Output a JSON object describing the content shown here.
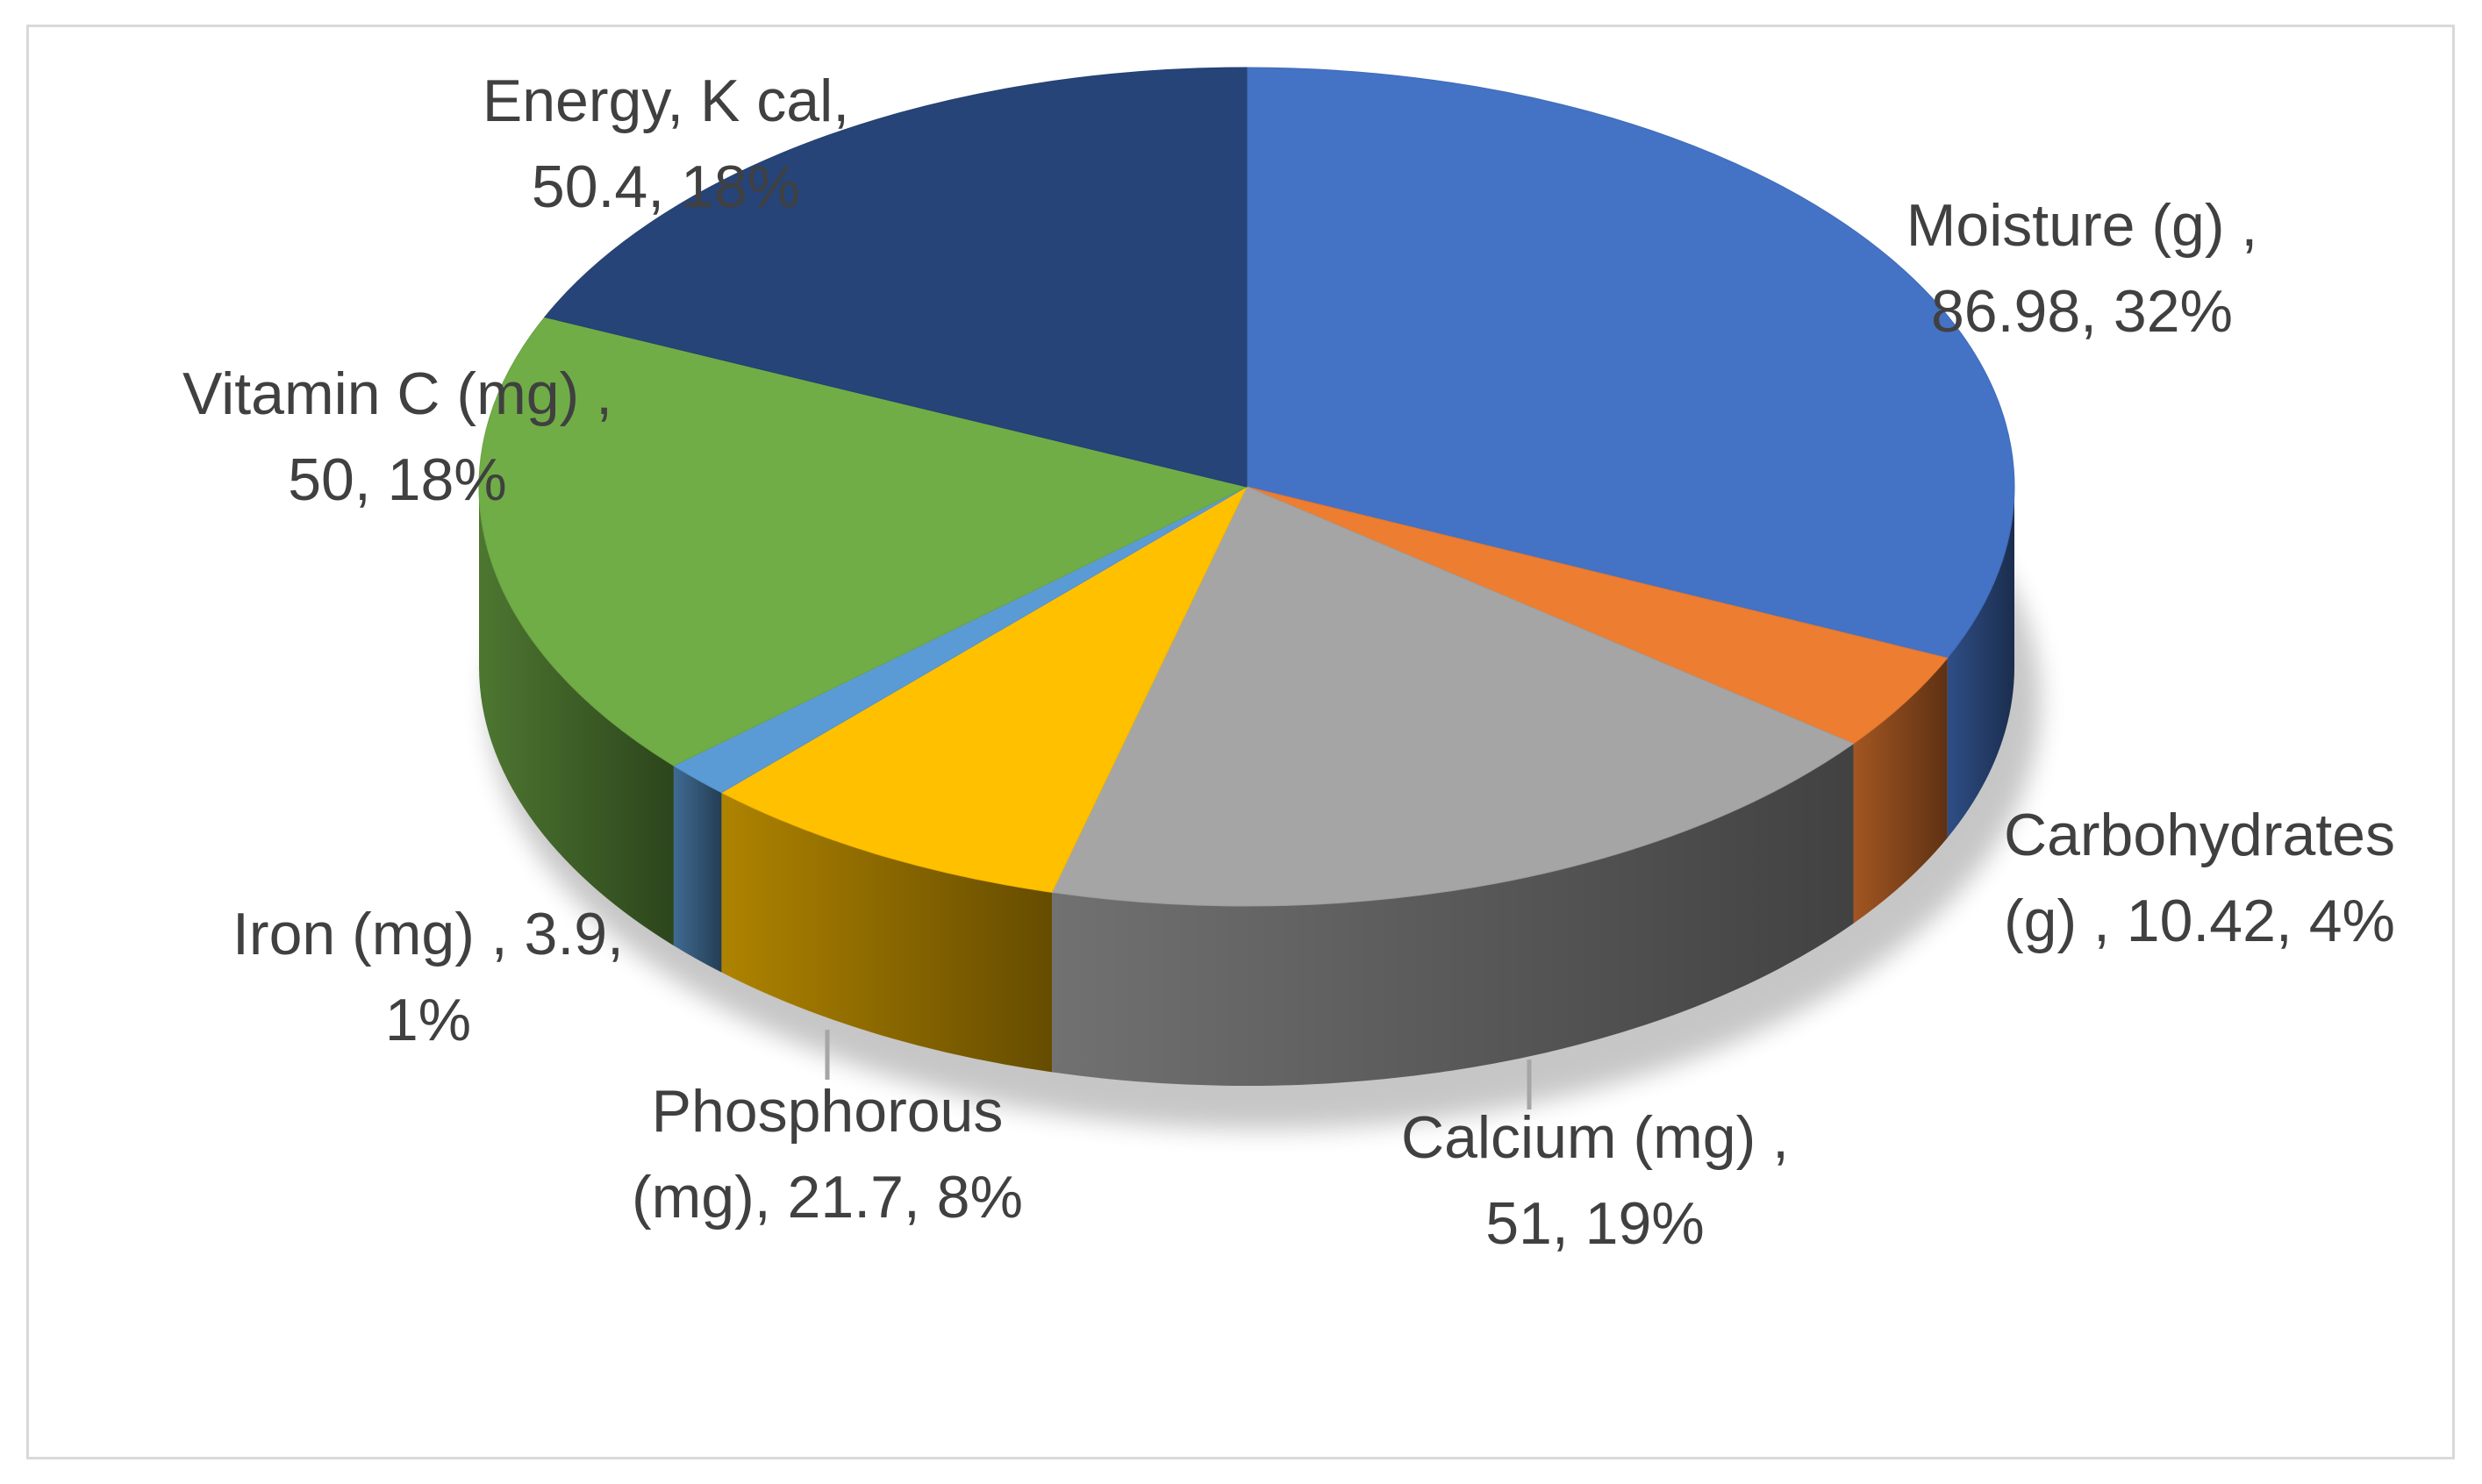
{
  "chart_data": {
    "type": "pie",
    "style": "3d-exploded-none",
    "title": "",
    "categories": [
      "Moisture (g)",
      "Carbohydrates (g)",
      "Calcium (mg)",
      "Phosphorous (mg)",
      "Iron (mg)",
      "Vitamin C (mg)",
      "Energy, K cal"
    ],
    "values": [
      86.98,
      10.42,
      51,
      21.7,
      3.9,
      50,
      50.4
    ],
    "percents": [
      "32%",
      "4%",
      "19%",
      "8%",
      "1%",
      "18%",
      "18%"
    ],
    "colors": [
      "#4472c4",
      "#ed7d31",
      "#a5a5a5",
      "#ffc000",
      "#5b9bd5",
      "#70ad47",
      "#264478"
    ],
    "labels": [
      [
        "Moisture (g) ,",
        "86.98, 32%"
      ],
      [
        "Carbohydrates",
        "(g) , 10.42, 4%"
      ],
      [
        "Calcium (mg) ,",
        "51, 19%"
      ],
      [
        "Phosphorous",
        "(mg), 21.7, 8%"
      ],
      [
        "Iron (mg) , 3.9,",
        "1%"
      ],
      [
        "Vitamin C (mg) ,",
        "50, 18%"
      ],
      [
        "Energy, K cal,",
        "50.4, 18%"
      ]
    ],
    "legend": "none"
  }
}
